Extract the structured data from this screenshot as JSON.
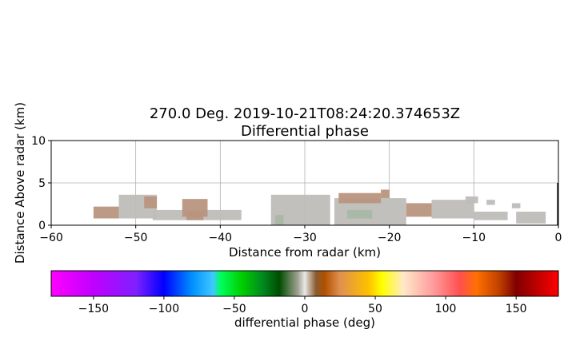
{
  "chart_data": [
    {
      "type": "heatmap",
      "title_line1": "270.0 Deg. 2019-10-21T08:24:20.374653Z",
      "title_line2": "Differential phase",
      "xlabel": "Distance from radar (km)",
      "ylabel": "Distance Above radar  (km)",
      "xlim": [
        -60,
        0
      ],
      "ylim": [
        0,
        10
      ],
      "xticks": [
        -60,
        -50,
        -40,
        -30,
        -20,
        -10,
        0
      ],
      "yticks": [
        0,
        5,
        10
      ],
      "grid": true,
      "colors": {
        "grey": "#bfbdb9",
        "tan": "#b8957e",
        "brown": "#b08a73",
        "greyGreen": "#a9b7a6"
      },
      "echo_segments": [
        {
          "x": [
            -55.0,
            -52.0
          ],
          "y": [
            0.8,
            2.2
          ],
          "color": "tan"
        },
        {
          "x": [
            -52.0,
            -47.5
          ],
          "y": [
            0.8,
            3.6
          ],
          "color": "grey"
        },
        {
          "x": [
            -49.0,
            -47.5
          ],
          "y": [
            2.0,
            3.4
          ],
          "color": "tan"
        },
        {
          "x": [
            -48.0,
            -37.5
          ],
          "y": [
            0.6,
            1.8
          ],
          "color": "grey"
        },
        {
          "x": [
            -44.5,
            -41.5
          ],
          "y": [
            1.0,
            3.1
          ],
          "color": "tan"
        },
        {
          "x": [
            -44.0,
            -42.0
          ],
          "y": [
            0.6,
            1.6
          ],
          "color": "tan"
        },
        {
          "x": [
            -34.0,
            -27.0
          ],
          "y": [
            0.0,
            3.6
          ],
          "color": "grey"
        },
        {
          "x": [
            -33.5,
            -32.5
          ],
          "y": [
            0.0,
            1.2
          ],
          "color": "greyGreen"
        },
        {
          "x": [
            -26.5,
            -18.0
          ],
          "y": [
            0.0,
            3.2
          ],
          "color": "grey"
        },
        {
          "x": [
            -26.0,
            -21.0
          ],
          "y": [
            2.6,
            3.8
          ],
          "color": "tan"
        },
        {
          "x": [
            -25.0,
            -22.0
          ],
          "y": [
            0.8,
            1.8
          ],
          "color": "greyGreen"
        },
        {
          "x": [
            -21.0,
            -20.0
          ],
          "y": [
            3.2,
            4.2
          ],
          "color": "tan"
        },
        {
          "x": [
            -18.0,
            -15.0
          ],
          "y": [
            1.0,
            2.6
          ],
          "color": "tan"
        },
        {
          "x": [
            -15.0,
            -10.0
          ],
          "y": [
            0.8,
            3.0
          ],
          "color": "grey"
        },
        {
          "x": [
            -11.0,
            -9.5
          ],
          "y": [
            2.6,
            3.4
          ],
          "color": "grey"
        },
        {
          "x": [
            -10.0,
            -6.0
          ],
          "y": [
            0.6,
            1.6
          ],
          "color": "grey"
        },
        {
          "x": [
            -8.5,
            -7.5
          ],
          "y": [
            2.4,
            3.0
          ],
          "color": "grey"
        },
        {
          "x": [
            -5.5,
            -4.5
          ],
          "y": [
            2.0,
            2.6
          ],
          "color": "grey"
        },
        {
          "x": [
            -5.0,
            -1.5
          ],
          "y": [
            0.2,
            1.6
          ],
          "color": "grey"
        }
      ]
    },
    {
      "type": "colorbar",
      "label": "differential phase (deg)",
      "range": [
        -180,
        180
      ],
      "ticks": [
        -150,
        -100,
        -50,
        0,
        50,
        100,
        150
      ],
      "gradient_stops": [
        {
          "value": -180,
          "color": "#ff00ff"
        },
        {
          "value": -150,
          "color": "#c000ff"
        },
        {
          "value": -120,
          "color": "#8020ff"
        },
        {
          "value": -100,
          "color": "#0000ff"
        },
        {
          "value": -80,
          "color": "#0090ff"
        },
        {
          "value": -65,
          "color": "#40c8ff"
        },
        {
          "value": -60,
          "color": "#00ff60"
        },
        {
          "value": -45,
          "color": "#00d000"
        },
        {
          "value": -30,
          "color": "#008a20"
        },
        {
          "value": -18,
          "color": "#004d00"
        },
        {
          "value": -5,
          "color": "#a0a090"
        },
        {
          "value": 0,
          "color": "#e8e8e8"
        },
        {
          "value": 8,
          "color": "#8a5a30"
        },
        {
          "value": 14,
          "color": "#b05000"
        },
        {
          "value": 25,
          "color": "#e09050"
        },
        {
          "value": 45,
          "color": "#ffc000"
        },
        {
          "value": 55,
          "color": "#ffff00"
        },
        {
          "value": 70,
          "color": "#ffe8c8"
        },
        {
          "value": 90,
          "color": "#ffa0a0"
        },
        {
          "value": 110,
          "color": "#ff5050"
        },
        {
          "value": 122,
          "color": "#ff7000"
        },
        {
          "value": 138,
          "color": "#c04000"
        },
        {
          "value": 150,
          "color": "#800000"
        },
        {
          "value": 165,
          "color": "#c00000"
        },
        {
          "value": 180,
          "color": "#ff0000"
        }
      ]
    }
  ]
}
